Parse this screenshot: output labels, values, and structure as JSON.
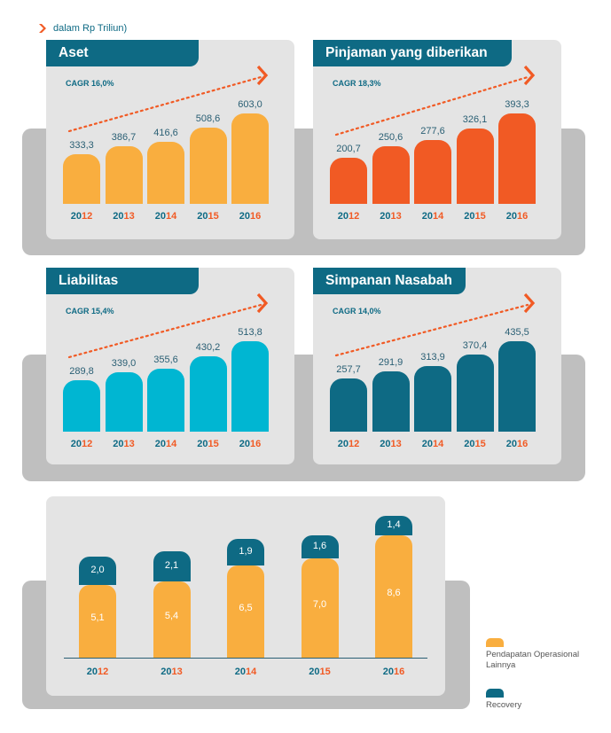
{
  "unit_note": "dalam Rp Triliun)",
  "colors": {
    "teal": "#0e6a84",
    "orange": "#f15a24",
    "yellow": "#f9ae3f",
    "cyan": "#00b6d2",
    "red_orange": "#f15a24",
    "gray": "#bfbfbf",
    "panel": "#e4e4e4"
  },
  "chart_data": [
    {
      "type": "bar",
      "title": "Aset",
      "annotation": "CAGR 16,0%",
      "categories": [
        "2012",
        "2013",
        "2014",
        "2015",
        "2016"
      ],
      "values": [
        333.3,
        386.7,
        416.6,
        508.6,
        603.0
      ],
      "value_labels": [
        "333,3",
        "386,7",
        "416,6",
        "508,6",
        "603,0"
      ],
      "color": "#f9ae3f"
    },
    {
      "type": "bar",
      "title": "Pinjaman yang diberikan",
      "annotation": "CAGR 18,3%",
      "categories": [
        "2012",
        "2013",
        "2014",
        "2015",
        "2016"
      ],
      "values": [
        200.7,
        250.6,
        277.6,
        326.1,
        393.3
      ],
      "value_labels": [
        "200,7",
        "250,6",
        "277,6",
        "326,1",
        "393,3"
      ],
      "color": "#f15a24"
    },
    {
      "type": "bar",
      "title": "Liabilitas",
      "annotation": "CAGR 15,4%",
      "categories": [
        "2012",
        "2013",
        "2014",
        "2015",
        "2016"
      ],
      "values": [
        289.8,
        339.0,
        355.6,
        430.2,
        513.8
      ],
      "value_labels": [
        "289,8",
        "339,0",
        "355,6",
        "430,2",
        "513,8"
      ],
      "color": "#00b6d2"
    },
    {
      "type": "bar",
      "title": "Simpanan Nasabah",
      "annotation": "CAGR 14,0%",
      "categories": [
        "2012",
        "2013",
        "2014",
        "2015",
        "2016"
      ],
      "values": [
        257.7,
        291.9,
        313.9,
        370.4,
        435.5
      ],
      "value_labels": [
        "257,7",
        "291,9",
        "313,9",
        "370,4",
        "435,5"
      ],
      "color": "#0e6a84"
    },
    {
      "type": "bar",
      "stacked": true,
      "categories": [
        "2012",
        "2013",
        "2014",
        "2015",
        "2016"
      ],
      "series": [
        {
          "name": "Pendapatan Operasional Lainnya",
          "values": [
            5.1,
            5.4,
            6.5,
            7.0,
            8.6
          ],
          "value_labels": [
            "5,1",
            "5,4",
            "6,5",
            "7,0",
            "8,6"
          ],
          "color": "#f9ae3f"
        },
        {
          "name": "Recovery",
          "values": [
            2.0,
            2.1,
            1.9,
            1.6,
            1.4
          ],
          "value_labels": [
            "2,0",
            "2,1",
            "1,9",
            "1,6",
            "1,4"
          ],
          "color": "#0e6a84"
        }
      ]
    }
  ]
}
